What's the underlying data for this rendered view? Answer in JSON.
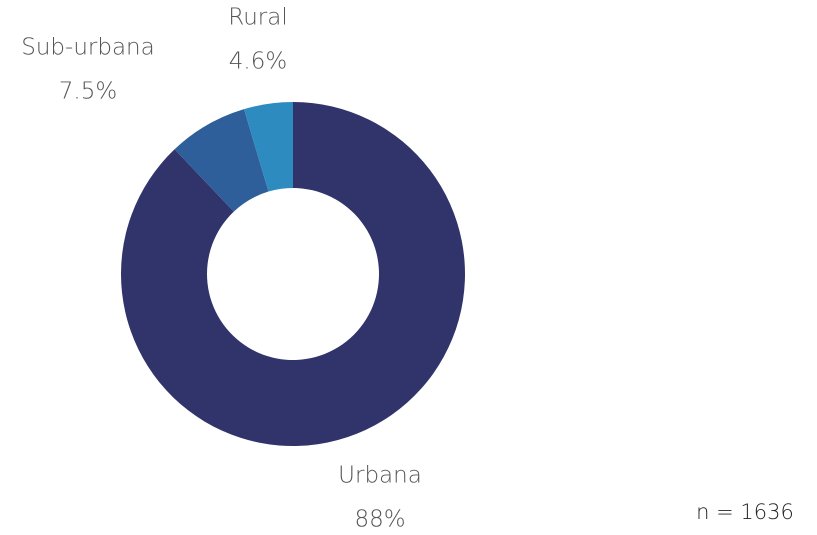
{
  "chart_data": {
    "type": "donut",
    "categories": [
      "Urbana",
      "Sub-urbana",
      "Rural"
    ],
    "values": [
      88,
      7.5,
      4.6
    ],
    "value_labels": [
      "88%",
      "7.5%",
      "4.6%"
    ],
    "colors": [
      "#31346b",
      "#2e5f9a",
      "#2e8bc0"
    ],
    "annotation": "n = 1636"
  }
}
